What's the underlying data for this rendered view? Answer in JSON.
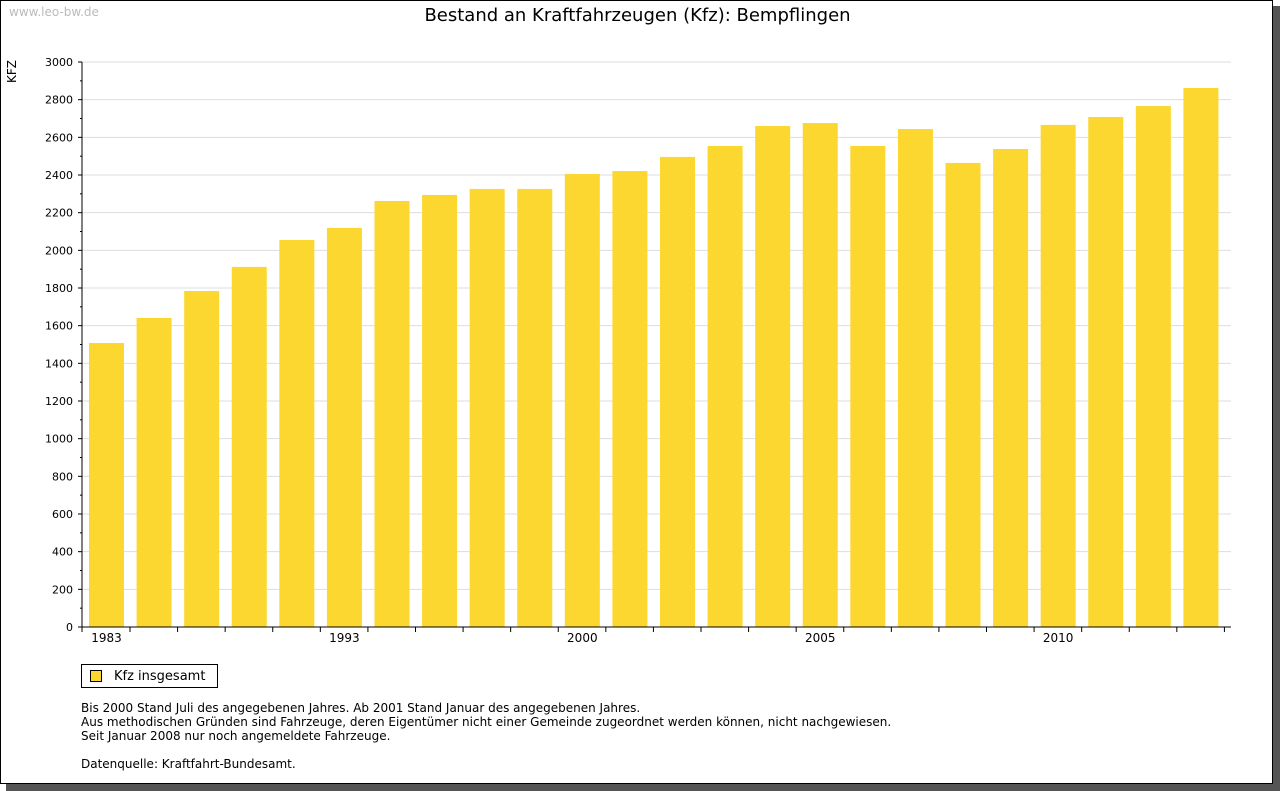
{
  "watermark": "www.leo-bw.de",
  "chart_data": {
    "type": "bar",
    "title": "Bestand an Kraftfahrzeugen (Kfz): Bempflingen",
    "ylabel": "KFZ",
    "xlabel": "",
    "ylim": [
      0,
      3000
    ],
    "yticks": [
      0,
      200,
      400,
      600,
      800,
      1000,
      1200,
      1400,
      1600,
      1800,
      2000,
      2200,
      2400,
      2600,
      2800,
      3000
    ],
    "categories": [
      "1983",
      "",
      "",
      "",
      "",
      "1993",
      "",
      "",
      "",
      "",
      "2000",
      "",
      "",
      "",
      "",
      "2005",
      "",
      "",
      "",
      "",
      "2010",
      "",
      "",
      ""
    ],
    "series": [
      {
        "name": "Kfz insgesamt",
        "color": "#fcd72f",
        "values": [
          1508,
          1641,
          1784,
          1912,
          2055,
          2119,
          2262,
          2294,
          2326,
          2326,
          2405,
          2421,
          2496,
          2554,
          2660,
          2676,
          2554,
          2644,
          2464,
          2538,
          2666,
          2708,
          2766,
          2862
        ]
      }
    ],
    "grid": true,
    "legend": "bottom-left"
  },
  "notes": [
    "Bis 2000 Stand Juli des angegebenen Jahres. Ab 2001 Stand Januar des angegebenen Jahres.",
    "Aus methodischen Gründen sind Fahrzeuge, deren Eigentümer nicht einer Gemeinde zugeordnet werden können, nicht nachgewiesen.",
    "Seit Januar 2008 nur noch angemeldete Fahrzeuge.",
    "",
    "Datenquelle: Kraftfahrt-Bundesamt."
  ]
}
